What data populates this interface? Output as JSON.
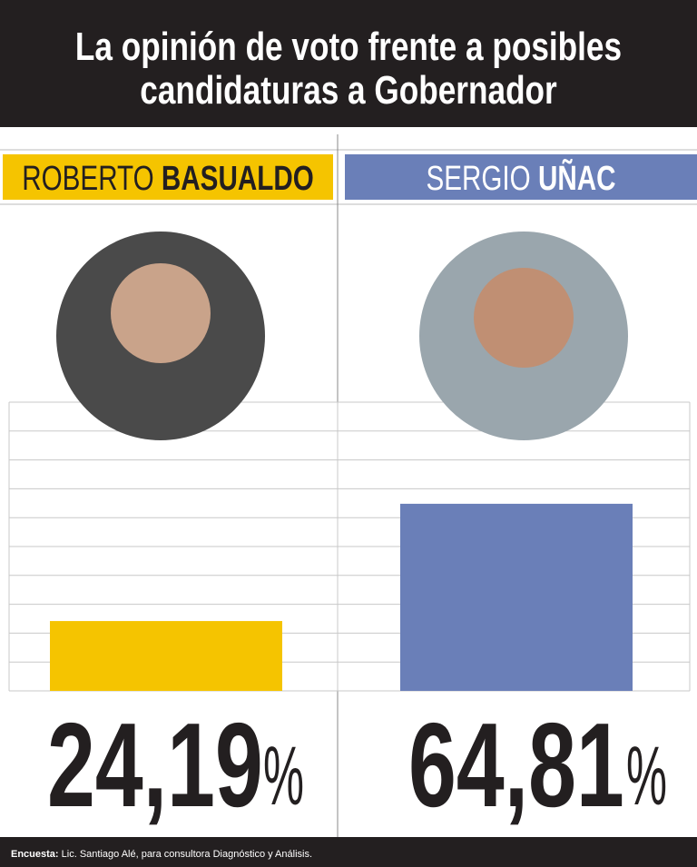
{
  "chart_data": {
    "type": "bar",
    "title": [
      "La opinión de voto frente a posibles",
      "candidaturas a Gobernador"
    ],
    "categories": [
      [
        "ROBERTO",
        "BASUALDO"
      ],
      [
        "SERGIO",
        "UÑAC"
      ]
    ],
    "values": [
      24.19,
      64.81
    ],
    "value_labels": [
      "24,19",
      "64,81"
    ],
    "unit": "%",
    "colors": [
      "#f5c400",
      "#6a7fb8"
    ],
    "ylim": [
      0,
      100
    ],
    "yticks": [
      0,
      10,
      20,
      30,
      40,
      50,
      60,
      70,
      80,
      90,
      100
    ],
    "grid": true,
    "footnote": {
      "label": "Encuesta:",
      "text": "Lic. Santiago Alé, para consultora Diagnóstico y Análisis."
    }
  }
}
